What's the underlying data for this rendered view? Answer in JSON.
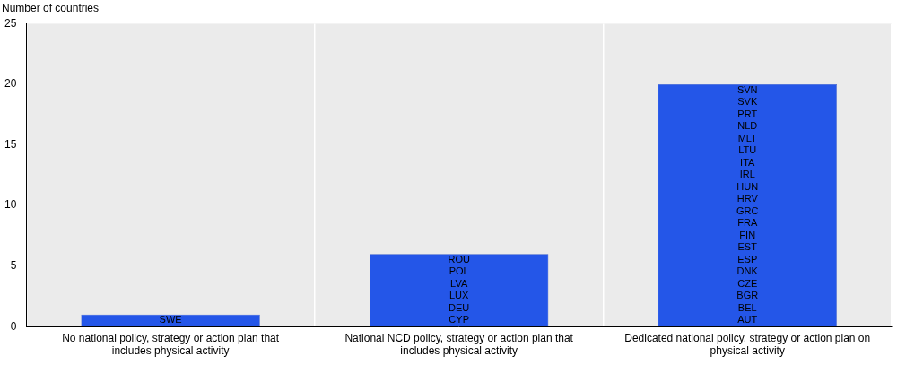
{
  "chart_data": {
    "type": "bar",
    "ylabel": "Number of countries",
    "categories": [
      "No national policy, strategy or action plan that includes physical activity",
      "National NCD policy, strategy or action plan that includes physical activity",
      "Dedicated national policy, strategy or action plan on physical activity"
    ],
    "values": [
      1,
      6,
      20
    ],
    "bar_labels": [
      [
        "SWE"
      ],
      [
        "CYP",
        "DEU",
        "LUX",
        "LVA",
        "POL",
        "ROU"
      ],
      [
        "AUT",
        "BEL",
        "BGR",
        "CZE",
        "DNK",
        "ESP",
        "EST",
        "FIN",
        "FRA",
        "GRC",
        "HRV",
        "HUN",
        "IRL",
        "ITA",
        "LTU",
        "MLT",
        "NLD",
        "PRT",
        "SVK",
        "SVN"
      ]
    ],
    "color": "#2456e8",
    "ylim": [
      0,
      25
    ],
    "yticks": [
      0,
      5,
      10,
      15,
      20,
      25
    ],
    "grid": true
  }
}
